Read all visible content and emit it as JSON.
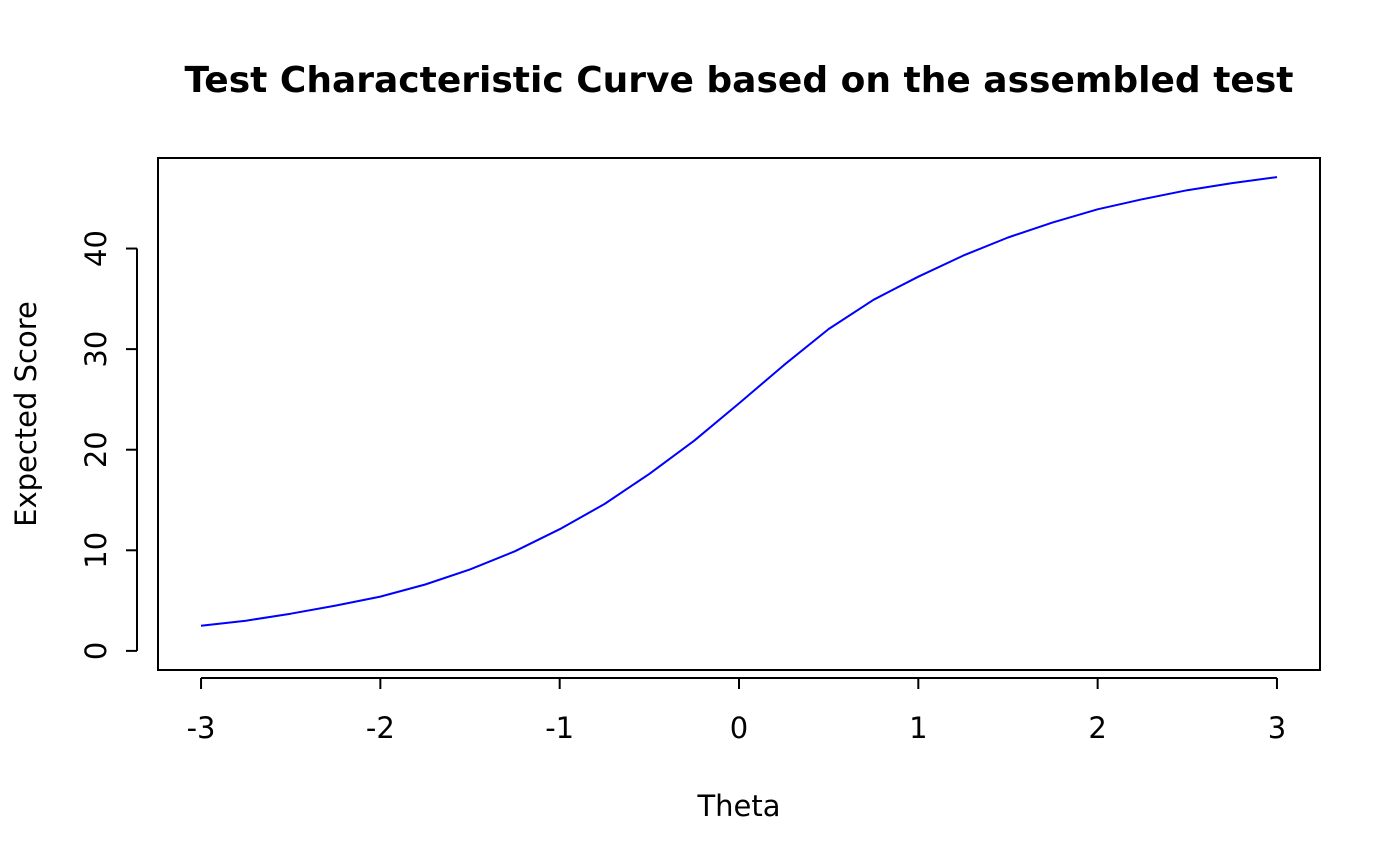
{
  "chart_data": {
    "type": "line",
    "title": "Test Characteristic Curve based on the assembled test",
    "xlabel": "Theta",
    "ylabel": "Expected Score",
    "xlim": [
      -3.24,
      3.24
    ],
    "ylim": [
      -1.9,
      49.0
    ],
    "xticks": [
      -3,
      -2,
      -1,
      0,
      1,
      2,
      3
    ],
    "xtick_labels": [
      "-3",
      "-2",
      "-1",
      "0",
      "1",
      "2",
      "3"
    ],
    "yticks": [
      0,
      10,
      20,
      30,
      40
    ],
    "ytick_labels": [
      "0",
      "10",
      "20",
      "30",
      "40"
    ],
    "grid": false,
    "legend": "none",
    "series": [
      {
        "color": "#0000ff",
        "x": [
          -3.0,
          -2.75,
          -2.5,
          -2.25,
          -2.0,
          -1.75,
          -1.5,
          -1.25,
          -1.0,
          -0.75,
          -0.5,
          -0.25,
          0.0,
          0.25,
          0.5,
          0.75,
          1.0,
          1.25,
          1.5,
          1.75,
          2.0,
          2.25,
          2.5,
          2.75,
          3.0
        ],
        "y": [
          2.5,
          3.0,
          3.7,
          4.5,
          5.4,
          6.6,
          8.1,
          9.9,
          12.1,
          14.6,
          17.6,
          20.9,
          24.6,
          28.4,
          32.0,
          34.9,
          37.2,
          39.3,
          41.1,
          42.6,
          43.9,
          44.9,
          45.8,
          46.5,
          47.1
        ]
      }
    ]
  }
}
